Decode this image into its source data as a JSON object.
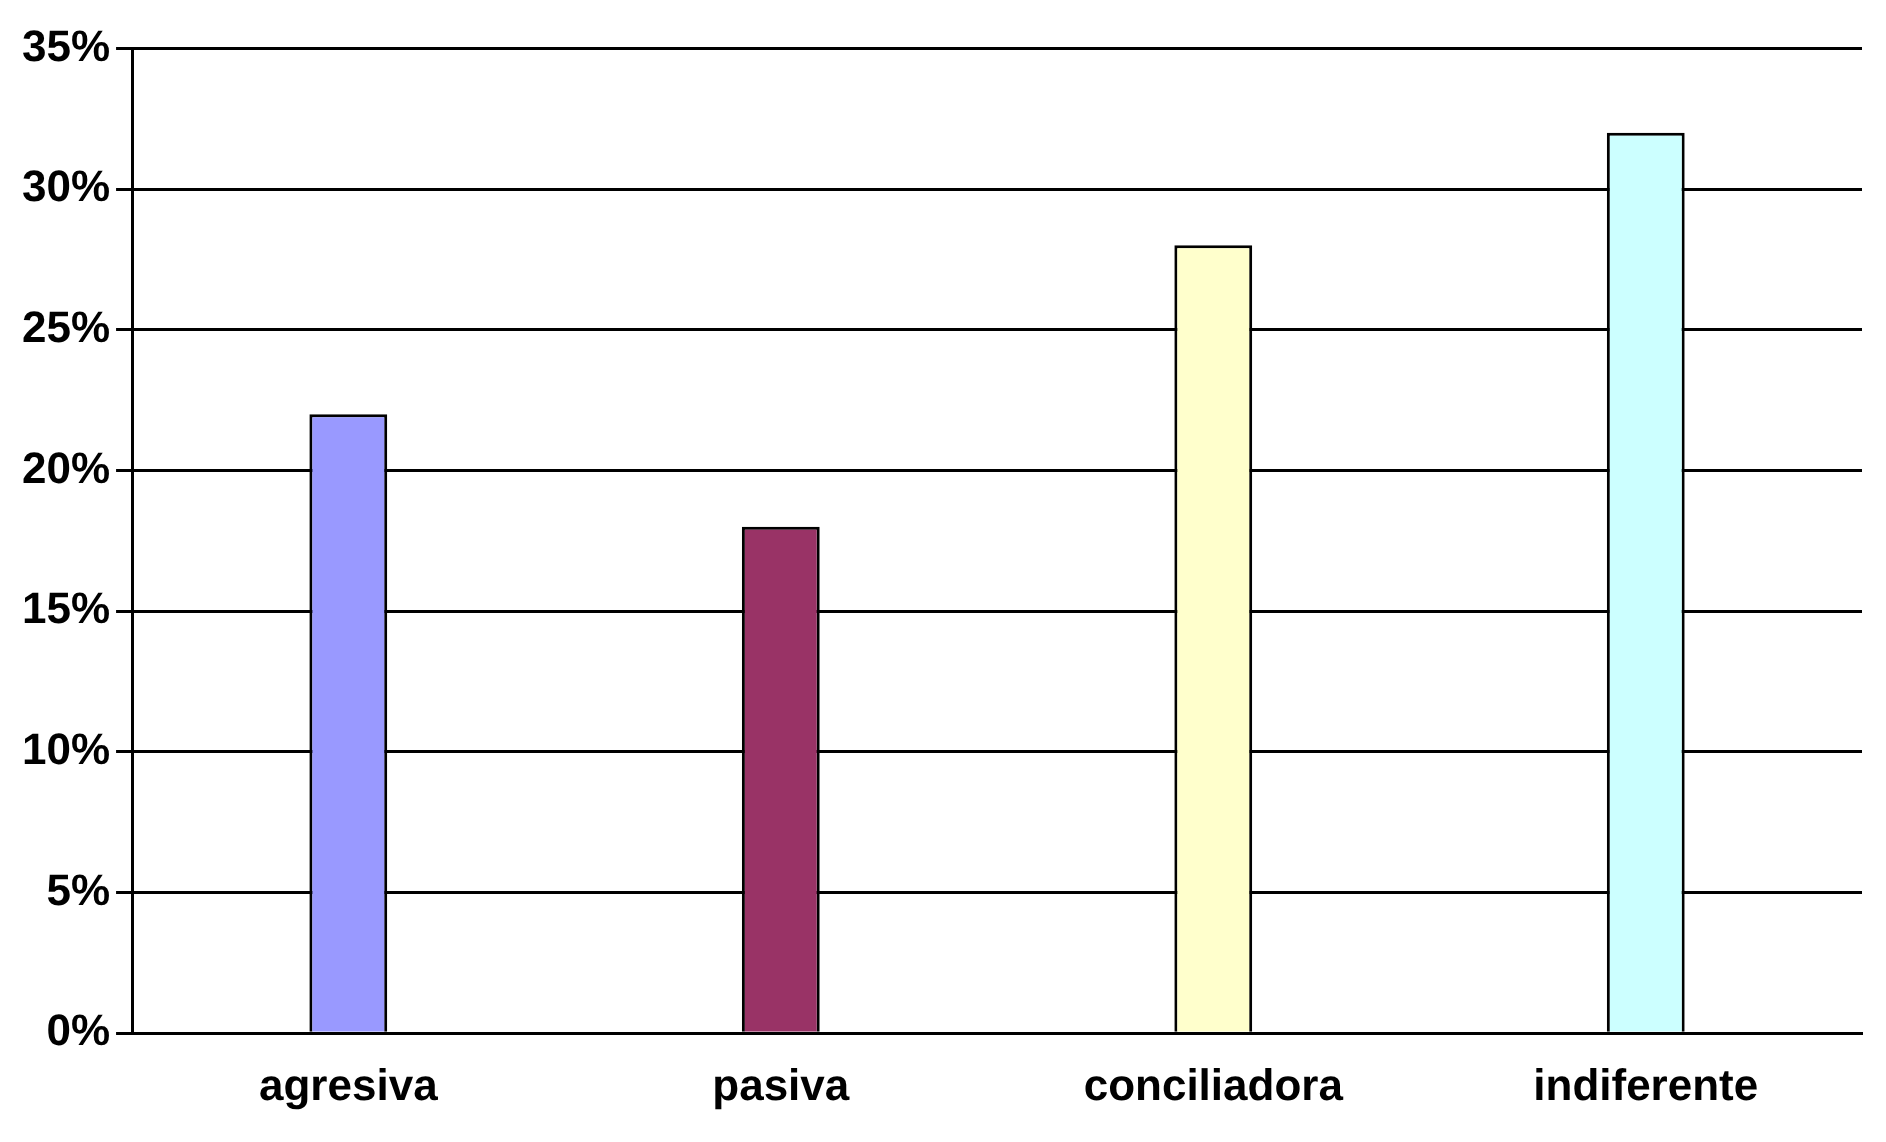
{
  "chart_data": {
    "type": "bar",
    "categories": [
      "agresiva",
      "pasiva",
      "conciliadora",
      "indiferente"
    ],
    "values": [
      22,
      18,
      28,
      32
    ],
    "colors": [
      "#9999ff",
      "#993366",
      "#ffffcc",
      "#ccffff"
    ],
    "ylim": [
      0,
      35
    ],
    "yticks": [
      {
        "value": 0,
        "label": "0%"
      },
      {
        "value": 5,
        "label": "5%"
      },
      {
        "value": 10,
        "label": "10%"
      },
      {
        "value": 15,
        "label": "15%"
      },
      {
        "value": 20,
        "label": "20%"
      },
      {
        "value": 25,
        "label": "25%"
      },
      {
        "value": 30,
        "label": "30%"
      },
      {
        "value": 35,
        "label": "35%"
      }
    ],
    "grid": "y",
    "legend": false
  }
}
